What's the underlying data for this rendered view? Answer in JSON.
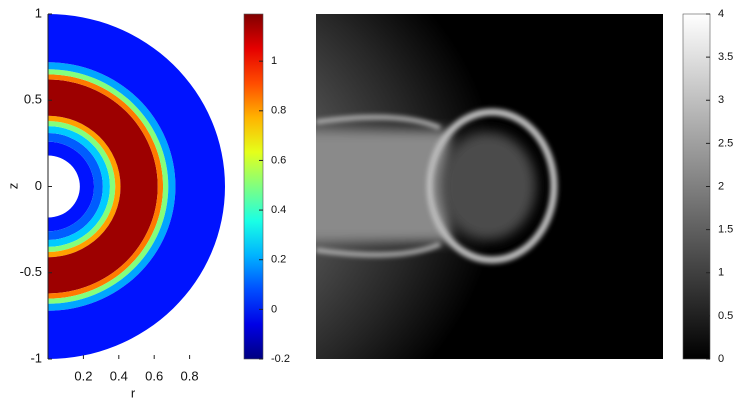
{
  "chart_data": [
    {
      "type": "ring-heatmap",
      "xlabel": "r",
      "ylabel": "z",
      "xlim": [
        0,
        1
      ],
      "ylim": [
        -1,
        1
      ],
      "xticks": [
        0.2,
        0.4,
        0.6,
        0.8
      ],
      "yticks": [
        -1,
        -0.5,
        0,
        0.5,
        1
      ],
      "radii": [
        0.18,
        0.26,
        0.31,
        0.35,
        0.38,
        0.41,
        0.62,
        0.65,
        0.68,
        0.72,
        1.0
      ],
      "values": [
        0.0,
        0.1,
        0.25,
        0.5,
        0.8,
        1.15,
        0.85,
        0.5,
        0.2,
        0.0
      ],
      "colormap": "jet",
      "clim": [
        -0.2,
        1.19
      ],
      "cticks": [
        -0.2,
        0,
        0.2,
        0.4,
        0.6,
        0.8,
        1
      ]
    },
    {
      "type": "image",
      "colormap": "gray",
      "clim": [
        0,
        4
      ],
      "cticks": [
        0,
        0.5,
        1,
        1.5,
        2,
        2.5,
        3,
        3.5,
        4
      ]
    }
  ]
}
